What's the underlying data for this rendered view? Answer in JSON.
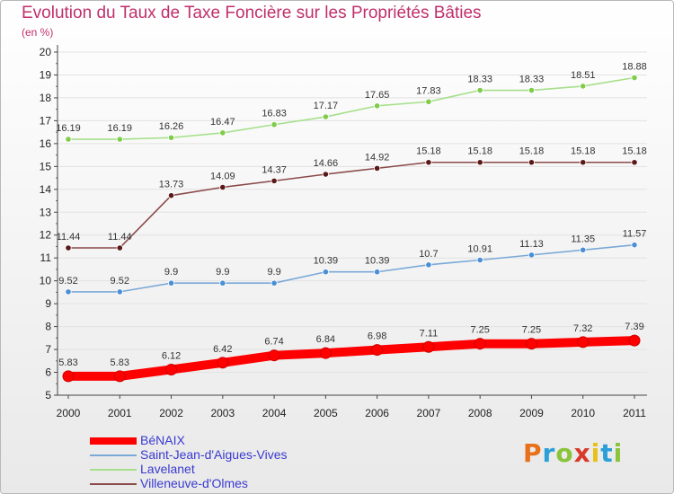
{
  "chart_data": {
    "type": "line",
    "title": "Evolution du Taux de Taxe Foncière sur les Propriétés Bâties",
    "ylabel": "(en %)",
    "xlabel": "",
    "ylim": [
      5,
      20
    ],
    "yticks": [
      "5",
      "6",
      "7",
      "8",
      "9",
      "10",
      "11",
      "12",
      "13",
      "14",
      "15",
      "16",
      "17",
      "18",
      "19",
      "20"
    ],
    "categories": [
      "2000",
      "2001",
      "2002",
      "2003",
      "2004",
      "2005",
      "2006",
      "2007",
      "2008",
      "2009",
      "2010",
      "2011"
    ],
    "grid": "horizontal",
    "legend_position": "bottom-left",
    "series": [
      {
        "name": "BéNAIX",
        "color": "#ff0000",
        "marker": "#ff0000",
        "emphasis": true,
        "values": [
          5.83,
          5.83,
          6.12,
          6.42,
          6.74,
          6.84,
          6.98,
          7.11,
          7.25,
          7.25,
          7.32,
          7.39
        ],
        "labels": [
          "5.83",
          "5.83",
          "6.12",
          "6.42",
          "6.74",
          "6.84",
          "6.98",
          "7.11",
          "7.25",
          "7.25",
          "7.32",
          "7.39"
        ]
      },
      {
        "name": "Saint-Jean-d'Aigues-Vives",
        "color": "#7aa9d8",
        "marker": "#4a8fd6",
        "emphasis": false,
        "values": [
          9.52,
          9.52,
          9.9,
          9.9,
          9.9,
          10.39,
          10.39,
          10.7,
          10.91,
          11.13,
          11.35,
          11.57
        ],
        "labels": [
          "9.52",
          "9.52",
          "9.9",
          "9.9",
          "9.9",
          "10.39",
          "10.39",
          "10.7",
          "10.91",
          "11.13",
          "11.35",
          "11.57"
        ]
      },
      {
        "name": "Lavelanet",
        "color": "#a6e08a",
        "marker": "#7fcc4a",
        "emphasis": false,
        "values": [
          16.19,
          16.19,
          16.26,
          16.47,
          16.83,
          17.17,
          17.65,
          17.83,
          18.33,
          18.33,
          18.51,
          18.88
        ],
        "labels": [
          "16.19",
          "16.19",
          "16.26",
          "16.47",
          "16.83",
          "17.17",
          "17.65",
          "17.83",
          "18.33",
          "18.33",
          "18.51",
          "18.88"
        ]
      },
      {
        "name": "Villeneuve-d'Olmes",
        "color": "#8a4a4a",
        "marker": "#5a1818",
        "emphasis": false,
        "values": [
          11.44,
          11.44,
          13.73,
          14.09,
          14.37,
          14.66,
          14.92,
          15.18,
          15.18,
          15.18,
          15.18,
          15.18
        ],
        "labels": [
          "11.44",
          "11.44",
          "13.73",
          "14.09",
          "14.37",
          "14.66",
          "14.92",
          "15.18",
          "15.18",
          "15.18",
          "15.18",
          "15.18"
        ]
      }
    ]
  },
  "logo": {
    "letters": [
      "P",
      "r",
      "o",
      "x",
      "i",
      "t",
      "i"
    ],
    "colors": [
      "#e8701a",
      "#2a9fd8",
      "#8ac43a",
      "#d83a2a",
      "#e8c01a",
      "#2a9fd8",
      "#8ac43a"
    ]
  }
}
